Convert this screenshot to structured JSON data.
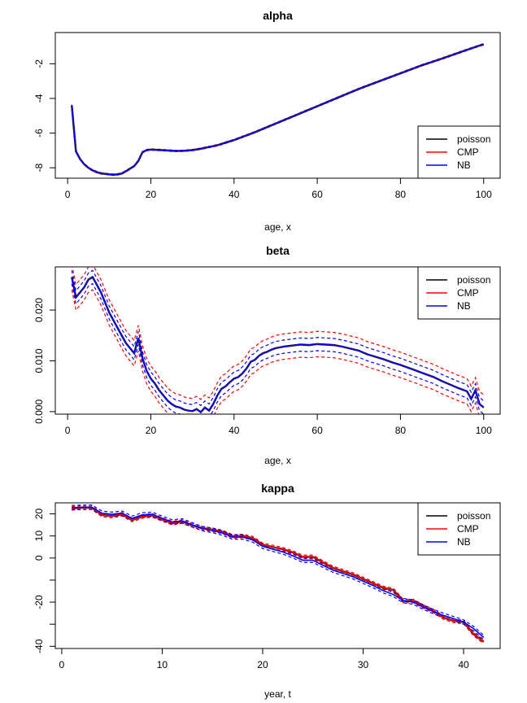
{
  "chart_data": [
    {
      "type": "line",
      "title": "alpha",
      "xlabel": "age, x",
      "ylabel": "",
      "xlim": [
        1,
        100
      ],
      "ylim": [
        -8.6,
        -0.2
      ],
      "xticks": [
        0,
        20,
        40,
        60,
        80,
        100
      ],
      "yticks": [
        -8,
        -6,
        -4,
        -2
      ],
      "legend_position": "bottom-right",
      "legend": [
        "poisson",
        "CMP",
        "NB"
      ],
      "x": [
        1,
        2,
        3,
        4,
        5,
        6,
        7,
        8,
        9,
        10,
        11,
        12,
        13,
        14,
        15,
        16,
        17,
        18,
        19,
        20,
        22,
        24,
        26,
        28,
        30,
        32,
        34,
        36,
        38,
        40,
        45,
        50,
        55,
        60,
        65,
        70,
        75,
        80,
        85,
        90,
        95,
        99,
        100
      ],
      "series": [
        {
          "name": "poisson",
          "color": "#000000",
          "values": [
            -4.4,
            -7.05,
            -7.5,
            -7.8,
            -8.0,
            -8.15,
            -8.25,
            -8.32,
            -8.35,
            -8.38,
            -8.4,
            -8.38,
            -8.33,
            -8.2,
            -8.05,
            -7.9,
            -7.6,
            -7.1,
            -6.98,
            -6.95,
            -6.97,
            -7.0,
            -7.03,
            -7.02,
            -6.98,
            -6.9,
            -6.8,
            -6.7,
            -6.55,
            -6.4,
            -5.95,
            -5.45,
            -4.95,
            -4.45,
            -3.95,
            -3.45,
            -3.0,
            -2.55,
            -2.1,
            -1.7,
            -1.28,
            -0.95,
            -0.88
          ]
        },
        {
          "name": "CMP",
          "color": "#ff0000",
          "values": [
            -4.4,
            -7.05,
            -7.5,
            -7.8,
            -8.0,
            -8.15,
            -8.25,
            -8.32,
            -8.35,
            -8.38,
            -8.4,
            -8.38,
            -8.33,
            -8.2,
            -8.05,
            -7.9,
            -7.6,
            -7.1,
            -6.98,
            -6.95,
            -6.97,
            -7.0,
            -7.03,
            -7.02,
            -6.98,
            -6.9,
            -6.8,
            -6.7,
            -6.55,
            -6.4,
            -5.95,
            -5.45,
            -4.95,
            -4.45,
            -3.95,
            -3.45,
            -3.0,
            -2.55,
            -2.1,
            -1.7,
            -1.28,
            -0.95,
            -0.88
          ]
        },
        {
          "name": "NB",
          "color": "#0000ff",
          "values": [
            -4.4,
            -7.05,
            -7.5,
            -7.8,
            -8.0,
            -8.15,
            -8.25,
            -8.32,
            -8.35,
            -8.38,
            -8.4,
            -8.38,
            -8.33,
            -8.2,
            -8.05,
            -7.9,
            -7.6,
            -7.1,
            -6.98,
            -6.95,
            -6.97,
            -7.0,
            -7.03,
            -7.02,
            -6.98,
            -6.9,
            -6.8,
            -6.7,
            -6.55,
            -6.4,
            -5.95,
            -5.45,
            -4.95,
            -4.45,
            -3.95,
            -3.45,
            -3.0,
            -2.55,
            -2.1,
            -1.7,
            -1.28,
            -0.95,
            -0.88
          ]
        }
      ],
      "bands": [
        {
          "color": "#ff0000",
          "offset": 0.04
        },
        {
          "color": "#0000ff",
          "offset": 0.025
        }
      ]
    },
    {
      "type": "line",
      "title": "beta",
      "xlabel": "age, x",
      "ylabel": "",
      "xlim": [
        1,
        100
      ],
      "ylim": [
        -0.0005,
        0.0285
      ],
      "xticks": [
        0,
        20,
        40,
        60,
        80,
        100
      ],
      "yticks": [
        0.0,
        0.01,
        0.02
      ],
      "ytick_labels": [
        "0.000",
        "0.010",
        "0.020"
      ],
      "legend_position": "top-right",
      "legend": [
        "poisson",
        "CMP",
        "NB"
      ],
      "x": [
        1,
        2,
        3,
        4,
        5,
        6,
        7,
        8,
        9,
        10,
        11,
        12,
        13,
        14,
        15,
        16,
        17,
        18,
        19,
        20,
        21,
        22,
        23,
        24,
        25,
        26,
        27,
        28,
        29,
        30,
        31,
        32,
        33,
        34,
        35,
        36,
        37,
        38,
        39,
        40,
        41,
        42,
        43,
        44,
        45,
        46,
        47,
        48,
        49,
        50,
        52,
        54,
        56,
        58,
        60,
        62,
        64,
        66,
        68,
        70,
        72,
        74,
        76,
        78,
        80,
        82,
        84,
        86,
        88,
        90,
        92,
        94,
        96,
        97,
        98,
        99,
        100
      ],
      "series": [
        {
          "name": "poisson",
          "color": "#000000",
          "values": [
            0.0265,
            0.0225,
            0.0235,
            0.0245,
            0.026,
            0.0265,
            0.025,
            0.0235,
            0.0215,
            0.0195,
            0.018,
            0.0165,
            0.015,
            0.0135,
            0.0125,
            0.0115,
            0.0145,
            0.0105,
            0.008,
            0.0065,
            0.0055,
            0.0042,
            0.0032,
            0.0022,
            0.0015,
            0.001,
            0.0008,
            0.0004,
            0.0002,
            0.0001,
            0.0005,
            -0.0001,
            0.0008,
            0.0002,
            0.0015,
            0.0032,
            0.0045,
            0.005,
            0.0058,
            0.0065,
            0.0068,
            0.0075,
            0.0085,
            0.0098,
            0.0102,
            0.011,
            0.0115,
            0.0118,
            0.0122,
            0.0125,
            0.0128,
            0.013,
            0.0132,
            0.0131,
            0.0133,
            0.0132,
            0.0131,
            0.0128,
            0.0124,
            0.012,
            0.0113,
            0.0108,
            0.0103,
            0.0097,
            0.0092,
            0.0086,
            0.008,
            0.0074,
            0.0068,
            0.006,
            0.0053,
            0.0046,
            0.004,
            0.0025,
            0.0042,
            0.0015,
            0.0008
          ]
        },
        {
          "name": "CMP",
          "color": "#ff0000",
          "values": [
            0.0265,
            0.0225,
            0.0235,
            0.0245,
            0.026,
            0.0265,
            0.025,
            0.0235,
            0.0215,
            0.0195,
            0.018,
            0.0165,
            0.015,
            0.0135,
            0.0125,
            0.0115,
            0.0145,
            0.0105,
            0.008,
            0.0065,
            0.0055,
            0.0042,
            0.0032,
            0.0022,
            0.0015,
            0.001,
            0.0008,
            0.0004,
            0.0002,
            0.0001,
            0.0005,
            -0.0001,
            0.0008,
            0.0002,
            0.0015,
            0.0032,
            0.0045,
            0.005,
            0.0058,
            0.0065,
            0.0068,
            0.0075,
            0.0085,
            0.0098,
            0.0102,
            0.011,
            0.0115,
            0.0118,
            0.0122,
            0.0125,
            0.0128,
            0.013,
            0.0132,
            0.0131,
            0.0133,
            0.0132,
            0.0131,
            0.0128,
            0.0124,
            0.012,
            0.0113,
            0.0108,
            0.0103,
            0.0097,
            0.0092,
            0.0086,
            0.008,
            0.0074,
            0.0068,
            0.006,
            0.0053,
            0.0046,
            0.004,
            0.0025,
            0.0042,
            0.0015,
            0.0008
          ]
        },
        {
          "name": "NB",
          "color": "#0000ff",
          "values": [
            0.0265,
            0.0225,
            0.0235,
            0.0245,
            0.026,
            0.0265,
            0.025,
            0.0235,
            0.0215,
            0.0195,
            0.018,
            0.0165,
            0.015,
            0.0135,
            0.0125,
            0.0115,
            0.0145,
            0.0105,
            0.008,
            0.0065,
            0.0055,
            0.0042,
            0.0032,
            0.0022,
            0.0015,
            0.001,
            0.0008,
            0.0004,
            0.0002,
            0.0001,
            0.0005,
            -0.0001,
            0.0008,
            0.0002,
            0.0015,
            0.0032,
            0.0045,
            0.005,
            0.0058,
            0.0065,
            0.0068,
            0.0075,
            0.0085,
            0.0098,
            0.0102,
            0.011,
            0.0115,
            0.0118,
            0.0122,
            0.0125,
            0.0128,
            0.013,
            0.0132,
            0.0131,
            0.0133,
            0.0132,
            0.0131,
            0.0128,
            0.0124,
            0.012,
            0.0113,
            0.0108,
            0.0103,
            0.0097,
            0.0092,
            0.0086,
            0.008,
            0.0074,
            0.0068,
            0.006,
            0.0053,
            0.0046,
            0.004,
            0.0025,
            0.0042,
            0.0015,
            0.0008
          ]
        }
      ],
      "bands": [
        {
          "color": "#ff0000",
          "offset": 0.0025
        },
        {
          "color": "#0000ff",
          "offset": 0.0013
        }
      ]
    },
    {
      "type": "line",
      "title": "kappa",
      "xlabel": "year, t",
      "ylabel": "",
      "xlim": [
        1,
        42
      ],
      "ylim": [
        -41,
        25
      ],
      "xticks": [
        0,
        10,
        20,
        30,
        40
      ],
      "yticks": [
        -40,
        -30,
        -20,
        -10,
        0,
        10,
        20
      ],
      "ytick_labels": [
        "-40",
        "",
        "-20",
        "",
        "0",
        "10",
        "20"
      ],
      "legend_position": "top-right",
      "legend": [
        "poisson",
        "CMP",
        "NB"
      ],
      "x": [
        1,
        2,
        3,
        4,
        5,
        6,
        7,
        8,
        9,
        10,
        11,
        12,
        13,
        14,
        15,
        16,
        17,
        18,
        19,
        20,
        21,
        22,
        23,
        24,
        25,
        26,
        27,
        28,
        29,
        30,
        31,
        32,
        33,
        34,
        35,
        36,
        37,
        38,
        39,
        40,
        41,
        42
      ],
      "series": [
        {
          "name": "poisson",
          "color": "#000000",
          "values": [
            22.5,
            22.8,
            22.8,
            19.5,
            19.0,
            19.8,
            17.2,
            18.8,
            19.3,
            17.5,
            15.8,
            16.5,
            14.8,
            13.5,
            12.8,
            11.8,
            9.8,
            10.0,
            9.0,
            6.0,
            5.0,
            4.0,
            2.5,
            0.5,
            0.5,
            -2.0,
            -4.5,
            -6.0,
            -7.5,
            -9.5,
            -11.5,
            -13.5,
            -14.5,
            -19.5,
            -19.5,
            -22.0,
            -24.0,
            -27.0,
            -28.5,
            -29.0,
            -34.5,
            -38.0
          ]
        },
        {
          "name": "CMP",
          "color": "#ff0000",
          "values": [
            22.5,
            22.8,
            22.8,
            19.5,
            19.0,
            19.8,
            17.2,
            18.8,
            19.3,
            17.5,
            15.8,
            16.5,
            14.8,
            13.5,
            12.8,
            11.8,
            9.8,
            10.0,
            9.0,
            6.0,
            5.0,
            4.0,
            2.5,
            0.5,
            0.5,
            -2.0,
            -4.5,
            -6.0,
            -7.5,
            -9.5,
            -11.5,
            -13.5,
            -14.5,
            -19.5,
            -19.5,
            -22.0,
            -24.0,
            -27.0,
            -28.5,
            -29.0,
            -34.5,
            -38.0
          ]
        },
        {
          "name": "NB",
          "color": "#0000ff",
          "values": [
            22.8,
            23.0,
            23.0,
            20.3,
            19.8,
            20.3,
            18.0,
            19.5,
            19.8,
            18.0,
            16.3,
            16.8,
            15.0,
            13.3,
            12.5,
            11.3,
            9.5,
            9.5,
            8.2,
            5.3,
            4.0,
            2.8,
            1.0,
            -1.0,
            -1.0,
            -3.3,
            -5.5,
            -7.0,
            -8.5,
            -10.5,
            -12.5,
            -14.8,
            -16.5,
            -19.3,
            -20.0,
            -22.3,
            -24.3,
            -26.0,
            -27.5,
            -29.0,
            -32.0,
            -36.0
          ]
        }
      ],
      "bands": [
        {
          "color": "#ff0000",
          "offset": 0.8,
          "base": 1
        },
        {
          "color": "#0000ff",
          "offset": 1.0,
          "base": 2
        }
      ]
    }
  ]
}
